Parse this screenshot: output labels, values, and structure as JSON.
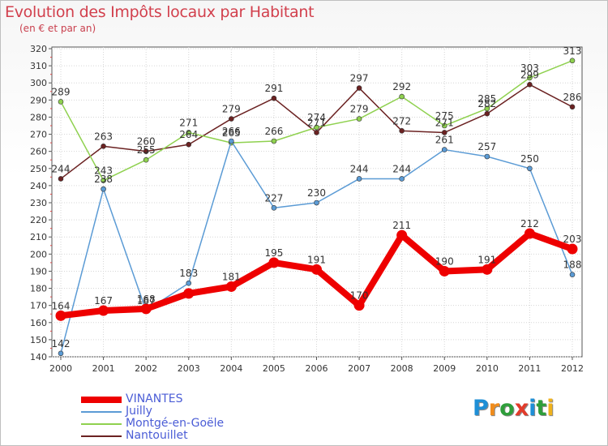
{
  "title": "Evolution des Impôts locaux par Habitant",
  "subtitle": "(en € et par an)",
  "logo": {
    "letters": [
      "P",
      "r",
      "o",
      "x",
      "i",
      "t",
      "i"
    ],
    "colors": [
      "#1e8fd6",
      "#f08c1c",
      "#2e9e3a",
      "#e23b2a",
      "#1e8fd6",
      "#2e9e3a",
      "#f0b21c"
    ]
  },
  "chart_data": {
    "type": "line",
    "title": "Evolution des Impôts locaux par Habitant",
    "subtitle": "(en € et par an)",
    "xlabel": "",
    "ylabel": "",
    "categories": [
      "2000",
      "2001",
      "2002",
      "2003",
      "2004",
      "2005",
      "2006",
      "2007",
      "2008",
      "2009",
      "2010",
      "2011",
      "2012"
    ],
    "ylim": [
      140,
      320
    ],
    "yticks": [
      140,
      150,
      160,
      170,
      180,
      190,
      200,
      210,
      220,
      230,
      240,
      250,
      260,
      270,
      280,
      290,
      300,
      310,
      320
    ],
    "grid": true,
    "legend_position": "bottom-left",
    "series": [
      {
        "name": "VINANTES",
        "color": "#ee0000",
        "values": [
          164,
          167,
          168,
          177,
          181,
          195,
          191,
          170,
          211,
          190,
          191,
          212,
          203
        ],
        "labels": [
          "164",
          "167",
          "168",
          "",
          "181",
          "195",
          "191",
          "170",
          "211",
          "190",
          "191",
          "212",
          "203"
        ]
      },
      {
        "name": "Juilly",
        "color": "#5b9bd5",
        "values": [
          142,
          238,
          167,
          183,
          266,
          227,
          230,
          244,
          244,
          261,
          257,
          250,
          188
        ],
        "labels": [
          "142",
          "238",
          "167",
          "183",
          "266",
          "227",
          "230",
          "244",
          "244",
          "261",
          "257",
          "250",
          "188"
        ]
      },
      {
        "name": "Montgé-en-Goële",
        "color": "#8fd14f",
        "values": [
          289,
          243,
          255,
          271,
          265,
          266,
          274,
          279,
          292,
          275,
          285,
          303,
          313
        ],
        "labels": [
          "289",
          "243",
          "255",
          "271",
          "265",
          "266",
          "274",
          "279",
          "292",
          "275",
          "285",
          "303",
          "313"
        ]
      },
      {
        "name": "Nantouillet",
        "color": "#6b2222",
        "values": [
          244,
          263,
          260,
          264,
          279,
          291,
          271,
          297,
          272,
          271,
          282,
          299,
          286
        ],
        "labels": [
          "244",
          "263",
          "260",
          "264",
          "279",
          "291",
          "271",
          "297",
          "272",
          "271",
          "282",
          "299",
          "286"
        ]
      }
    ]
  }
}
